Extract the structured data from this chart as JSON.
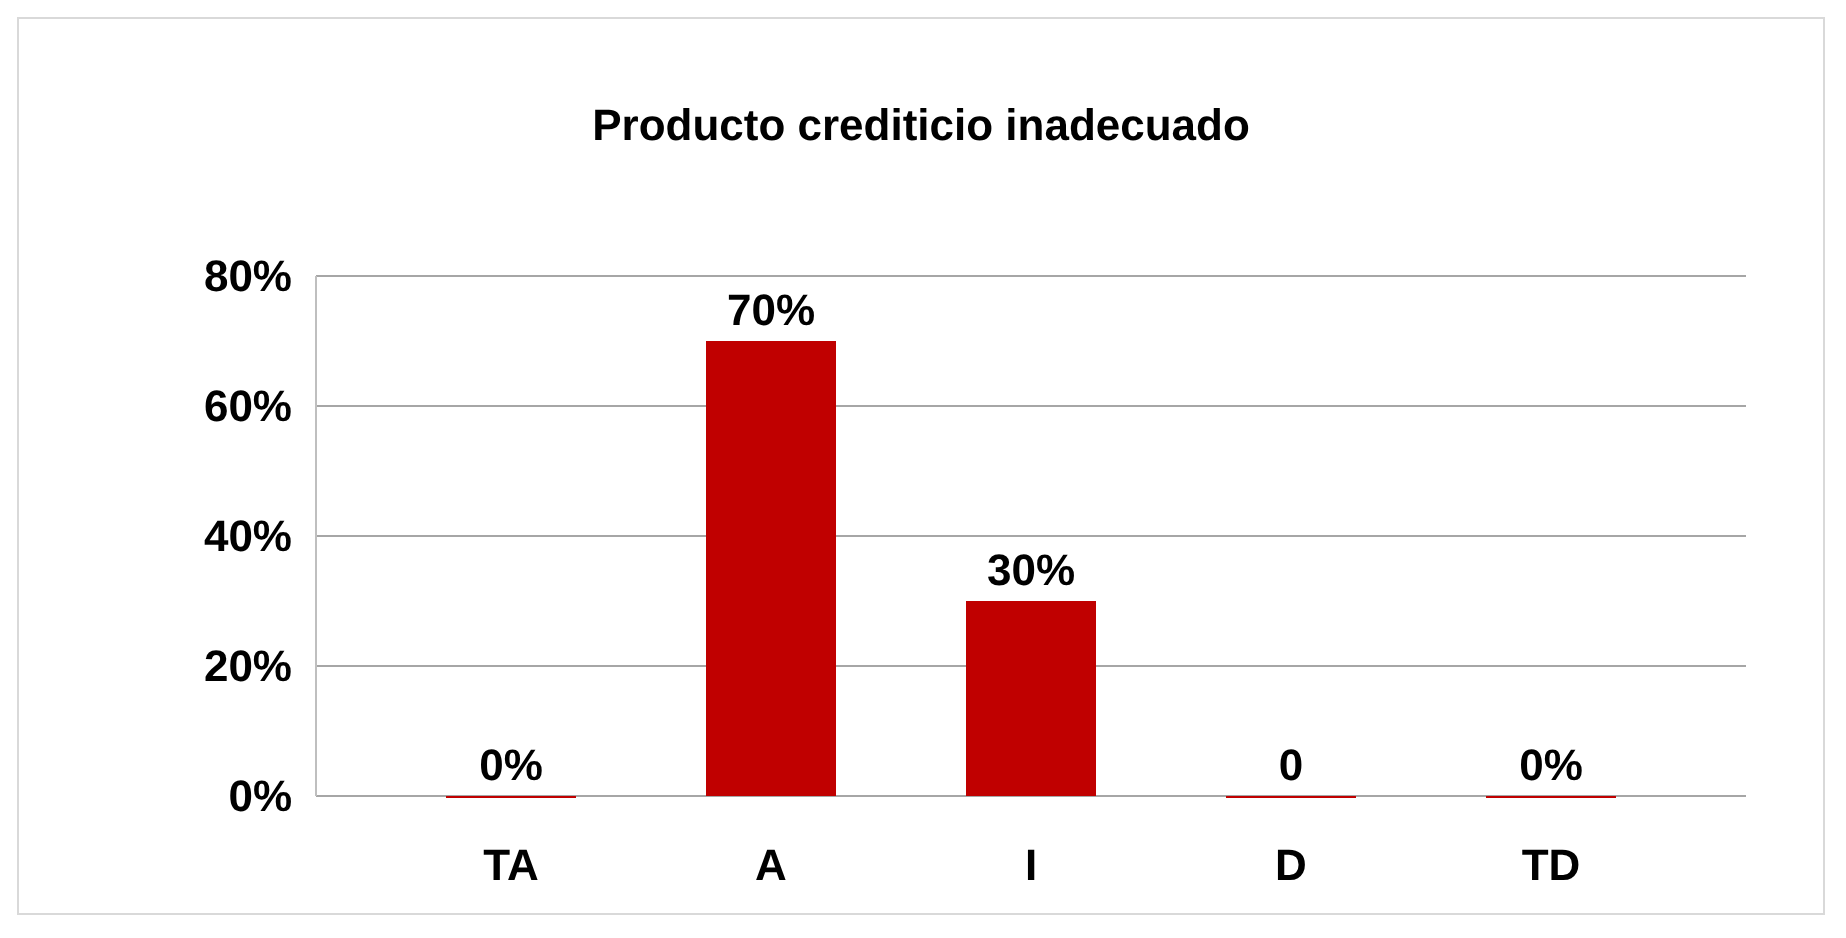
{
  "chart_data": {
    "type": "bar",
    "title": "Producto crediticio inadecuado",
    "categories": [
      "TA",
      "A",
      "I",
      "D",
      "TD"
    ],
    "values": [
      0,
      70,
      30,
      0,
      0
    ],
    "color": "#c00000",
    "value_labels": [
      "0%",
      "70%",
      "30%",
      "0",
      "0%"
    ],
    "ylim": [
      0,
      80
    ],
    "yticks": [
      {
        "value": 0,
        "label": "0%"
      },
      {
        "value": 20,
        "label": "20%"
      },
      {
        "value": 40,
        "label": "40%"
      },
      {
        "value": 60,
        "label": "60%"
      },
      {
        "value": 80,
        "label": "80%"
      }
    ],
    "grid": true
  }
}
